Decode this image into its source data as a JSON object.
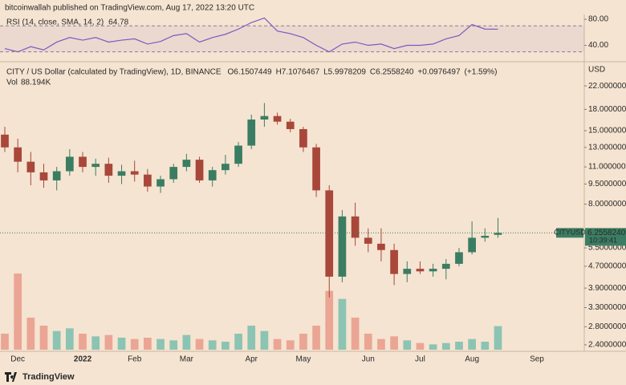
{
  "header": "bitcoinwallah published on TradingView.com, Aug 17, 2022 13:20 UTC",
  "footer": "TradingView",
  "chart_data": {
    "type": "candlestick",
    "title": "CITY / US Dollar (calculated by TradingView), 1D, BINANCE",
    "legend_values": [
      {
        "value": 6.1507449,
        "label": "O6.1507449"
      },
      {
        "value": 7.1076467,
        "label": "H7.1076467"
      },
      {
        "value": 5.9978209,
        "label": "L5.9978209"
      },
      {
        "value": 6.255824,
        "label": "C6.2558240"
      },
      {
        "value": 0.0976497,
        "label": "+0.0976497"
      },
      {
        "value": 1.59,
        "label": "(+1.59%)"
      }
    ],
    "volume_title": "Vol",
    "volume_label": {
      "value": 88.194,
      "label": "88.194K"
    },
    "currency": "USD",
    "symbol": "CITYUSD",
    "last_price": {
      "value": 6.255824,
      "label": "6.2558240"
    },
    "countdown": "10:39:41",
    "categories": [
      null,
      "Dec",
      null,
      null,
      null,
      null,
      "2022",
      null,
      null,
      null,
      "Feb",
      null,
      null,
      null,
      "Mar",
      null,
      null,
      null,
      null,
      "Apr",
      null,
      null,
      null,
      "May",
      null,
      null,
      null,
      null,
      "Jun",
      null,
      null,
      null,
      "Jul",
      null,
      null,
      null,
      "Aug",
      null,
      null,
      null,
      null,
      "Sep"
    ],
    "open": [
      14.5,
      13.0,
      11.5,
      10.5,
      9.8,
      10.6,
      12.0,
      11.0,
      11.3,
      10.2,
      10.6,
      10.3,
      9.3,
      9.9,
      11.0,
      11.7,
      9.8,
      10.7,
      11.3,
      13.2,
      16.5,
      17.0,
      16.2,
      15.2,
      13.0,
      9.0,
      4.3,
      7.2,
      6.0,
      5.7,
      5.4,
      4.4,
      4.6,
      4.5,
      4.6,
      4.8,
      5.3,
      6.0,
      6.1507449,
      null,
      null,
      null
    ],
    "high": [
      15.5,
      14.0,
      12.5,
      11.3,
      11.0,
      12.8,
      12.5,
      11.8,
      11.9,
      11.2,
      11.6,
      10.8,
      10.2,
      11.3,
      12.3,
      12.0,
      11.0,
      12.2,
      13.6,
      17.2,
      19.0,
      17.5,
      16.6,
      15.5,
      13.4,
      9.4,
      7.6,
      8.1,
      6.5,
      6.5,
      5.7,
      4.9,
      4.9,
      4.8,
      5.0,
      5.5,
      6.9,
      6.5,
      7.1076467,
      null,
      null,
      null
    ],
    "low": [
      12.5,
      10.5,
      9.4,
      9.2,
      9.0,
      10.2,
      10.5,
      10.2,
      9.6,
      9.5,
      9.7,
      8.9,
      8.8,
      9.6,
      10.6,
      9.6,
      9.3,
      10.3,
      11.0,
      12.8,
      15.5,
      15.8,
      14.8,
      12.5,
      8.5,
      3.6,
      4.1,
      5.6,
      5.3,
      4.9,
      4.0,
      4.1,
      4.4,
      4.3,
      4.2,
      4.7,
      5.2,
      5.8,
      5.9978209,
      null,
      null,
      null
    ],
    "close": [
      13.0,
      11.5,
      10.5,
      9.8,
      10.6,
      12.0,
      11.0,
      11.3,
      10.2,
      10.6,
      10.3,
      9.3,
      9.9,
      11.0,
      11.7,
      9.8,
      10.7,
      11.3,
      13.2,
      16.5,
      17.0,
      16.2,
      15.2,
      13.0,
      9.0,
      4.3,
      7.2,
      6.0,
      5.7,
      5.4,
      4.4,
      4.6,
      4.5,
      4.6,
      4.8,
      5.3,
      6.0,
      6.1,
      6.255824,
      null,
      null,
      null
    ],
    "volume": [
      60,
      285,
      120,
      90,
      70,
      80,
      60,
      50,
      55,
      45,
      40,
      45,
      40,
      35,
      55,
      40,
      35,
      30,
      60,
      90,
      70,
      40,
      35,
      60,
      90,
      220,
      190,
      120,
      60,
      40,
      50,
      35,
      25,
      20,
      25,
      30,
      40,
      30,
      88.194,
      null,
      null,
      null
    ],
    "up_color": "#3b7d63",
    "down_color": "#a8473a",
    "volume_up_color": "#8cc4b3",
    "volume_down_color": "#eba594",
    "log_scale": true,
    "grid": false,
    "ylim": [
      2.27,
      26.5
    ],
    "yticks": [
      {
        "value": 22,
        "label": "22.0000000"
      },
      {
        "value": 18,
        "label": "18.0000000"
      },
      {
        "value": 15,
        "label": "15.0000000"
      },
      {
        "value": 13,
        "label": "13.0000000"
      },
      {
        "value": 11,
        "label": "11.0000000"
      },
      {
        "value": 9.5,
        "label": "9.5000000"
      },
      {
        "value": 8,
        "label": "8.0000000"
      },
      {
        "value": 5.5,
        "label": "5.5000000"
      },
      {
        "value": 4.7,
        "label": "4.7000000"
      },
      {
        "value": 3.9,
        "label": "3.9000000"
      },
      {
        "value": 3.3,
        "label": "3.3000000"
      },
      {
        "value": 2.8,
        "label": "2.8000000"
      },
      {
        "value": 2.4,
        "label": "2.4000000"
      }
    ],
    "rsi": {
      "title": "RSI (14, close, SMA, 14, 2)",
      "color": "#7e57c2",
      "values": [
        35,
        30,
        38,
        33,
        45,
        52,
        48,
        52,
        45,
        48,
        50,
        42,
        46,
        55,
        58,
        45,
        52,
        57,
        65,
        75,
        82,
        62,
        58,
        52,
        40,
        30,
        42,
        45,
        40,
        42,
        35,
        40,
        40,
        42,
        50,
        55,
        72,
        65,
        64.78,
        null,
        null,
        null
      ],
      "ylim": [
        16,
        87.5
      ],
      "band": [
        30,
        70
      ],
      "yticks": [
        {
          "value": 80,
          "label": "80.00"
        },
        {
          "value": 40,
          "label": "40.00"
        }
      ]
    }
  }
}
